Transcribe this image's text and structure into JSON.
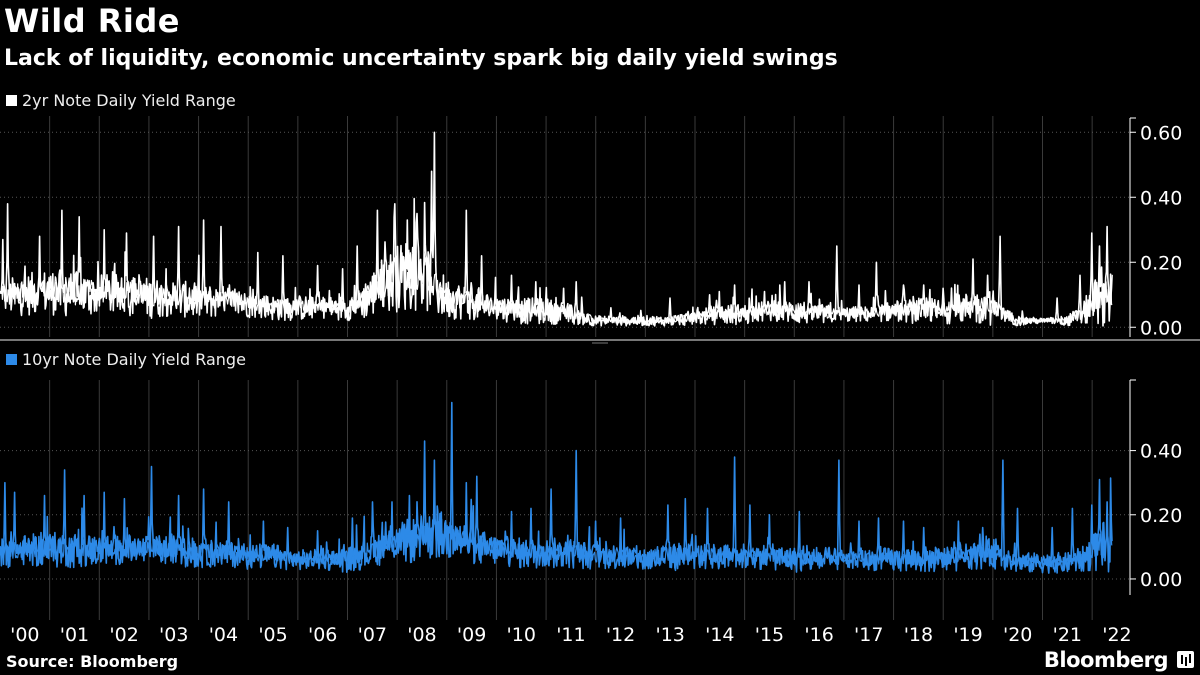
{
  "header": {
    "title": "Wild Ride",
    "subtitle": "Lack of liquidity, economic uncertainty spark big daily yield swings"
  },
  "footer": {
    "source": "Source: Bloomberg",
    "brand": "Bloomberg"
  },
  "colors": {
    "background": "#000000",
    "series_2yr": "#ffffff",
    "series_10yr": "#2d8ae8",
    "grid": "#3a3a3a",
    "axis": "#ffffff"
  },
  "chart_data": [
    {
      "type": "line",
      "panel": "top",
      "legend": "2yr Note Daily Yield Range",
      "y_ticks": [
        "0.00",
        "0.20",
        "0.40",
        "0.60"
      ],
      "ylim": [
        -0.03,
        0.65
      ],
      "xlim": [
        2000.0,
        2022.4
      ],
      "grid": true,
      "series": [
        {
          "name": "2yr Note Daily Yield Range",
          "x": [
            2000.0,
            2000.5,
            2001.0,
            2001.5,
            2002.0,
            2002.5,
            2003.0,
            2003.5,
            2004.0,
            2004.5,
            2005.0,
            2005.5,
            2006.0,
            2006.5,
            2007.0,
            2007.4,
            2007.7,
            2008.0,
            2008.3,
            2008.6,
            2008.8,
            2009.0,
            2009.3,
            2009.6,
            2010.0,
            2010.5,
            2011.0,
            2011.5,
            2012.0,
            2012.5,
            2013.0,
            2013.5,
            2014.0,
            2014.5,
            2015.0,
            2015.5,
            2016.0,
            2016.5,
            2017.0,
            2017.5,
            2018.0,
            2018.5,
            2019.0,
            2019.5,
            2020.0,
            2020.2,
            2020.5,
            2021.0,
            2021.5,
            2021.8,
            2022.0,
            2022.2
          ],
          "base": [
            0.09,
            0.1,
            0.11,
            0.1,
            0.1,
            0.1,
            0.09,
            0.09,
            0.08,
            0.08,
            0.07,
            0.06,
            0.06,
            0.06,
            0.06,
            0.09,
            0.13,
            0.15,
            0.17,
            0.15,
            0.11,
            0.09,
            0.08,
            0.07,
            0.06,
            0.05,
            0.05,
            0.04,
            0.02,
            0.02,
            0.02,
            0.02,
            0.03,
            0.04,
            0.04,
            0.05,
            0.05,
            0.04,
            0.04,
            0.04,
            0.05,
            0.05,
            0.05,
            0.06,
            0.06,
            0.04,
            0.02,
            0.02,
            0.02,
            0.04,
            0.07,
            0.1
          ],
          "spread": [
            0.07,
            0.08,
            0.09,
            0.09,
            0.08,
            0.08,
            0.08,
            0.07,
            0.07,
            0.06,
            0.05,
            0.05,
            0.05,
            0.04,
            0.05,
            0.08,
            0.11,
            0.13,
            0.15,
            0.13,
            0.1,
            0.08,
            0.07,
            0.06,
            0.05,
            0.05,
            0.05,
            0.04,
            0.02,
            0.02,
            0.02,
            0.02,
            0.03,
            0.04,
            0.04,
            0.04,
            0.05,
            0.04,
            0.03,
            0.03,
            0.04,
            0.05,
            0.05,
            0.06,
            0.07,
            0.03,
            0.02,
            0.01,
            0.02,
            0.04,
            0.08,
            0.12
          ],
          "peaks": [
            [
              2000.15,
              0.38
            ],
            [
              2000.05,
              0.27
            ],
            [
              2000.8,
              0.28
            ],
            [
              2001.25,
              0.36
            ],
            [
              2001.6,
              0.34
            ],
            [
              2002.1,
              0.3
            ],
            [
              2002.55,
              0.29
            ],
            [
              2003.1,
              0.28
            ],
            [
              2003.6,
              0.31
            ],
            [
              2004.1,
              0.33
            ],
            [
              2004.45,
              0.31
            ],
            [
              2005.2,
              0.23
            ],
            [
              2005.7,
              0.22
            ],
            [
              2006.4,
              0.19
            ],
            [
              2006.9,
              0.18
            ],
            [
              2007.2,
              0.25
            ],
            [
              2007.6,
              0.36
            ],
            [
              2007.95,
              0.38
            ],
            [
              2008.2,
              0.33
            ],
            [
              2008.4,
              0.35
            ],
            [
              2008.75,
              0.6
            ],
            [
              2008.7,
              0.48
            ],
            [
              2009.4,
              0.36
            ],
            [
              2009.7,
              0.22
            ],
            [
              2010.3,
              0.16
            ],
            [
              2010.8,
              0.14
            ],
            [
              2011.35,
              0.12
            ],
            [
              2011.6,
              0.14
            ],
            [
              2012.3,
              0.06
            ],
            [
              2013.5,
              0.09
            ],
            [
              2014.3,
              0.1
            ],
            [
              2014.8,
              0.13
            ],
            [
              2015.4,
              0.11
            ],
            [
              2015.8,
              0.14
            ],
            [
              2016.3,
              0.14
            ],
            [
              2016.85,
              0.25
            ],
            [
              2017.3,
              0.13
            ],
            [
              2017.65,
              0.2
            ],
            [
              2018.2,
              0.13
            ],
            [
              2018.6,
              0.13
            ],
            [
              2019.0,
              0.12
            ],
            [
              2019.6,
              0.21
            ],
            [
              2019.9,
              0.16
            ],
            [
              2020.15,
              0.28
            ],
            [
              2020.6,
              0.05
            ],
            [
              2021.3,
              0.09
            ],
            [
              2021.75,
              0.16
            ],
            [
              2022.0,
              0.29
            ],
            [
              2022.15,
              0.25
            ],
            [
              2022.3,
              0.31
            ]
          ]
        }
      ]
    },
    {
      "type": "line",
      "panel": "bottom",
      "legend": "10yr Note Daily Yield Range",
      "y_ticks": [
        "0.00",
        "0.20",
        "0.40"
      ],
      "ylim": [
        -0.05,
        0.62
      ],
      "xlim": [
        2000.0,
        2022.4
      ],
      "grid": true,
      "x_tick_labels": [
        "'00",
        "'01",
        "'02",
        "'03",
        "'04",
        "'05",
        "'06",
        "'07",
        "'08",
        "'09",
        "'10",
        "'11",
        "'12",
        "'13",
        "'14",
        "'15",
        "'16",
        "'17",
        "'18",
        "'19",
        "'20",
        "'21",
        "'22"
      ],
      "series": [
        {
          "name": "10yr Note Daily Yield Range",
          "x": [
            2000.0,
            2000.5,
            2001.0,
            2001.5,
            2002.0,
            2002.5,
            2003.0,
            2003.5,
            2004.0,
            2004.5,
            2005.0,
            2005.5,
            2006.0,
            2006.5,
            2007.0,
            2007.4,
            2007.7,
            2008.0,
            2008.3,
            2008.6,
            2008.8,
            2009.0,
            2009.3,
            2009.6,
            2010.0,
            2010.5,
            2011.0,
            2011.5,
            2012.0,
            2012.5,
            2013.0,
            2013.5,
            2014.0,
            2014.5,
            2015.0,
            2015.5,
            2016.0,
            2016.5,
            2017.0,
            2017.5,
            2018.0,
            2018.5,
            2019.0,
            2019.5,
            2020.0,
            2020.2,
            2020.5,
            2021.0,
            2021.5,
            2021.8,
            2022.0,
            2022.2
          ],
          "base": [
            0.08,
            0.09,
            0.09,
            0.09,
            0.09,
            0.09,
            0.09,
            0.09,
            0.08,
            0.08,
            0.07,
            0.07,
            0.06,
            0.06,
            0.06,
            0.08,
            0.1,
            0.11,
            0.12,
            0.13,
            0.14,
            0.13,
            0.12,
            0.1,
            0.09,
            0.08,
            0.08,
            0.08,
            0.07,
            0.07,
            0.06,
            0.07,
            0.07,
            0.07,
            0.07,
            0.07,
            0.06,
            0.06,
            0.06,
            0.06,
            0.06,
            0.06,
            0.06,
            0.07,
            0.08,
            0.06,
            0.05,
            0.05,
            0.05,
            0.06,
            0.08,
            0.1
          ],
          "spread": [
            0.06,
            0.06,
            0.07,
            0.07,
            0.06,
            0.06,
            0.06,
            0.06,
            0.06,
            0.05,
            0.05,
            0.05,
            0.04,
            0.04,
            0.05,
            0.06,
            0.07,
            0.08,
            0.09,
            0.09,
            0.1,
            0.09,
            0.08,
            0.07,
            0.06,
            0.06,
            0.06,
            0.06,
            0.05,
            0.05,
            0.05,
            0.06,
            0.05,
            0.05,
            0.05,
            0.05,
            0.05,
            0.05,
            0.04,
            0.04,
            0.05,
            0.05,
            0.05,
            0.05,
            0.06,
            0.04,
            0.04,
            0.04,
            0.04,
            0.05,
            0.07,
            0.1
          ],
          "peaks": [
            [
              2000.1,
              0.3
            ],
            [
              2000.3,
              0.27
            ],
            [
              2000.9,
              0.26
            ],
            [
              2001.3,
              0.34
            ],
            [
              2001.7,
              0.26
            ],
            [
              2002.1,
              0.27
            ],
            [
              2002.5,
              0.25
            ],
            [
              2003.05,
              0.35
            ],
            [
              2003.6,
              0.26
            ],
            [
              2004.1,
              0.28
            ],
            [
              2004.6,
              0.24
            ],
            [
              2005.3,
              0.18
            ],
            [
              2005.8,
              0.16
            ],
            [
              2006.4,
              0.15
            ],
            [
              2007.1,
              0.19
            ],
            [
              2007.5,
              0.24
            ],
            [
              2007.9,
              0.24
            ],
            [
              2008.25,
              0.26
            ],
            [
              2008.55,
              0.43
            ],
            [
              2008.75,
              0.37
            ],
            [
              2009.1,
              0.55
            ],
            [
              2009.4,
              0.3
            ],
            [
              2009.6,
              0.32
            ],
            [
              2010.3,
              0.21
            ],
            [
              2010.7,
              0.22
            ],
            [
              2011.1,
              0.28
            ],
            [
              2011.6,
              0.4
            ],
            [
              2012.0,
              0.18
            ],
            [
              2012.5,
              0.19
            ],
            [
              2013.45,
              0.23
            ],
            [
              2013.8,
              0.25
            ],
            [
              2014.25,
              0.22
            ],
            [
              2014.8,
              0.38
            ],
            [
              2015.1,
              0.23
            ],
            [
              2015.5,
              0.2
            ],
            [
              2016.1,
              0.21
            ],
            [
              2016.9,
              0.37
            ],
            [
              2017.3,
              0.18
            ],
            [
              2017.7,
              0.19
            ],
            [
              2018.2,
              0.18
            ],
            [
              2018.6,
              0.16
            ],
            [
              2019.3,
              0.18
            ],
            [
              2019.8,
              0.16
            ],
            [
              2020.2,
              0.37
            ],
            [
              2020.5,
              0.22
            ],
            [
              2021.2,
              0.16
            ],
            [
              2021.6,
              0.22
            ],
            [
              2022.0,
              0.23
            ],
            [
              2022.15,
              0.31
            ],
            [
              2022.3,
              0.24
            ]
          ]
        }
      ]
    }
  ]
}
